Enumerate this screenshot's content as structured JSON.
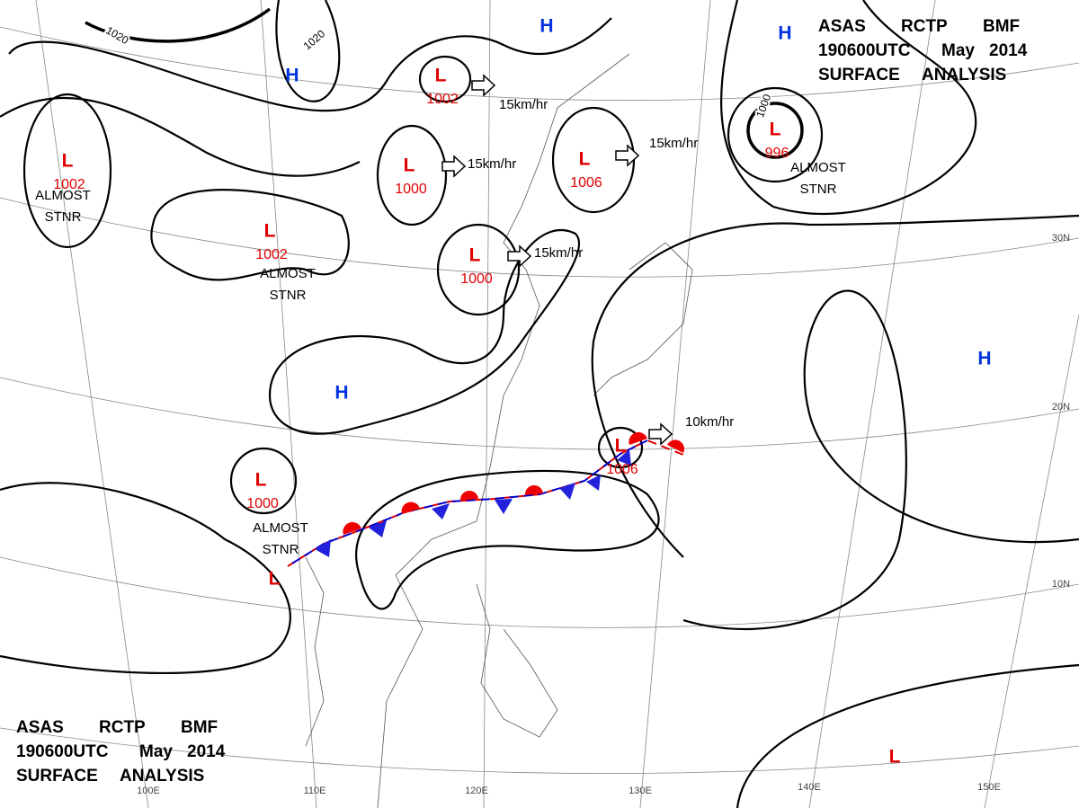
{
  "header": {
    "lines": [
      [
        "ASAS",
        "RCTP",
        "BMF"
      ],
      [
        "190600UTC",
        "May",
        "2014"
      ],
      [
        "SURFACE",
        "ANALYSIS"
      ]
    ]
  },
  "centers": [
    {
      "label": "L",
      "pressure": 1002
    },
    {
      "label": "L",
      "pressure": 1000
    },
    {
      "label": "L",
      "pressure": 1006
    },
    {
      "label": "L",
      "pressure": 996
    },
    {
      "label": "L",
      "pressure": 1002
    },
    {
      "label": "L",
      "pressure": 1002
    },
    {
      "label": "L",
      "pressure": 1000
    },
    {
      "label": "L",
      "pressure": 1000
    },
    {
      "label": "L",
      "pressure": 1006
    },
    {
      "label": "L"
    },
    {
      "label": "L"
    },
    {
      "label": "H"
    },
    {
      "label": "H"
    },
    {
      "label": "H"
    },
    {
      "label": "H"
    },
    {
      "label": "H"
    }
  ],
  "motions": [
    "15km/hr",
    "15km/hr",
    "15km/hr",
    "15km/hr",
    "10km/hr"
  ],
  "stationary_label": [
    "ALMOST",
    "STNR"
  ],
  "isobar_labels": [
    1020,
    1020,
    1000
  ],
  "latitudes": [
    "30N",
    "20N",
    "10N"
  ],
  "longitudes": [
    "100E",
    "110E",
    "120E",
    "130E",
    "140E",
    "150E"
  ]
}
